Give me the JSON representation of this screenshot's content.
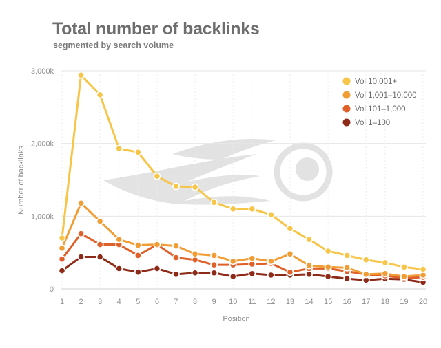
{
  "chart_data": {
    "type": "line",
    "title": "Total number of backlinks",
    "subtitle": "segmented by search volume",
    "xlabel": "Position",
    "ylabel": "Number of backlinks",
    "x": [
      1,
      2,
      3,
      4,
      5,
      6,
      7,
      8,
      9,
      10,
      11,
      12,
      13,
      14,
      15,
      16,
      17,
      18,
      19,
      20
    ],
    "ylim": [
      0,
      3000000
    ],
    "yticks": [
      0,
      1000000,
      2000000,
      3000000
    ],
    "ytick_labels": [
      "0",
      "1,000k",
      "2,000k",
      "3,000k"
    ],
    "grid": true,
    "legend_position": "top-right",
    "series": [
      {
        "name": "Vol 10,001+",
        "color": "#f7c548",
        "values": [
          700000,
          2940000,
          2670000,
          1930000,
          1880000,
          1550000,
          1410000,
          1400000,
          1190000,
          1100000,
          1100000,
          1020000,
          830000,
          680000,
          520000,
          460000,
          400000,
          360000,
          300000,
          270000
        ]
      },
      {
        "name": "Vol 1,001–10,000",
        "color": "#f19d36",
        "values": [
          560000,
          1180000,
          930000,
          680000,
          600000,
          610000,
          590000,
          480000,
          460000,
          380000,
          420000,
          380000,
          480000,
          320000,
          300000,
          290000,
          200000,
          210000,
          170000,
          190000
        ]
      },
      {
        "name": "Vol 101–1,000",
        "color": "#e0602a",
        "values": [
          410000,
          760000,
          610000,
          610000,
          460000,
          610000,
          430000,
          400000,
          330000,
          330000,
          340000,
          350000,
          230000,
          280000,
          280000,
          240000,
          200000,
          180000,
          150000,
          160000
        ]
      },
      {
        "name": "Vol 1–100",
        "color": "#8e2a18",
        "values": [
          250000,
          440000,
          440000,
          280000,
          230000,
          280000,
          200000,
          220000,
          220000,
          170000,
          210000,
          190000,
          190000,
          200000,
          170000,
          140000,
          120000,
          140000,
          130000,
          90000
        ]
      }
    ]
  }
}
